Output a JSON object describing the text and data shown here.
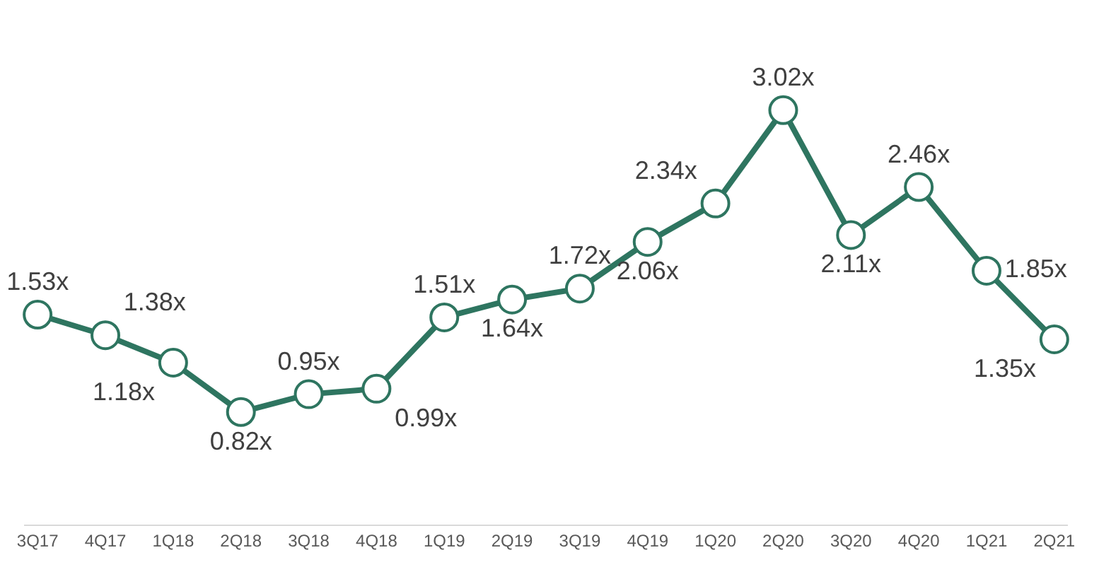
{
  "chart_data": {
    "type": "line",
    "categories": [
      "3Q17",
      "4Q17",
      "1Q18",
      "2Q18",
      "3Q18",
      "4Q18",
      "1Q19",
      "2Q19",
      "3Q19",
      "4Q19",
      "1Q20",
      "2Q20",
      "3Q20",
      "4Q20",
      "1Q21",
      "2Q21"
    ],
    "values": [
      1.53,
      1.38,
      1.18,
      0.82,
      0.95,
      0.99,
      1.51,
      1.64,
      1.72,
      2.06,
      2.34,
      3.02,
      2.11,
      2.46,
      1.85,
      1.35
    ],
    "value_labels": [
      "1.53x",
      "1.38x",
      "1.18x",
      "0.82x",
      "0.95x",
      "0.99x",
      "1.51x",
      "1.64x",
      "1.72x",
      "2.06x",
      "2.34x",
      "3.02x",
      "2.11x",
      "2.46x",
      "1.85x",
      "1.35x"
    ],
    "color": "#2e7560",
    "marker": "circle",
    "line_style": "solid",
    "legend": false,
    "tick_labels": "x"
  }
}
